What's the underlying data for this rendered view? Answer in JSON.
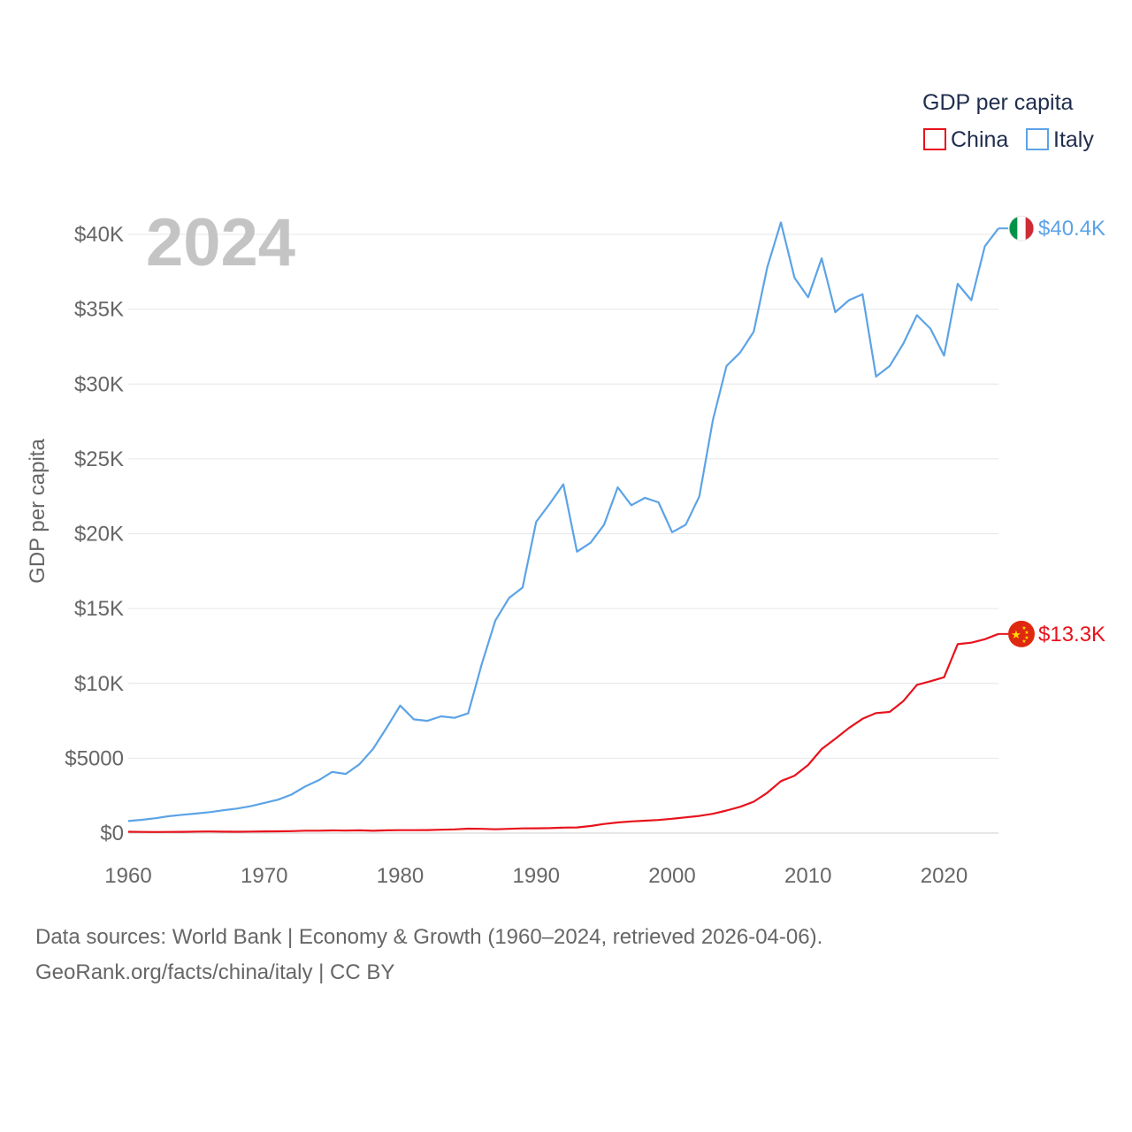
{
  "chart_data": {
    "type": "line",
    "title": "GDP per capita",
    "watermark_year": "2024",
    "ylabel": "GDP per capita",
    "xlabel": "",
    "xlim": [
      1960,
      2024
    ],
    "ylim": [
      0,
      42500
    ],
    "grid": true,
    "legend_position": "top-right",
    "x_ticks": [
      1960,
      1970,
      1980,
      1990,
      2000,
      2010,
      2020
    ],
    "x_tick_labels": [
      "1960",
      "1970",
      "1980",
      "1990",
      "2000",
      "2010",
      "2020"
    ],
    "y_ticks": [
      0,
      5000,
      10000,
      15000,
      20000,
      25000,
      30000,
      35000,
      40000
    ],
    "y_tick_labels": [
      "$0",
      "$5000",
      "$10K",
      "$15K",
      "$20K",
      "$25K",
      "$30K",
      "$35K",
      "$40K"
    ],
    "x": [
      1960,
      1961,
      1962,
      1963,
      1964,
      1965,
      1966,
      1967,
      1968,
      1969,
      1970,
      1971,
      1972,
      1973,
      1974,
      1975,
      1976,
      1977,
      1978,
      1979,
      1980,
      1981,
      1982,
      1983,
      1984,
      1985,
      1986,
      1987,
      1988,
      1989,
      1990,
      1991,
      1992,
      1993,
      1994,
      1995,
      1996,
      1997,
      1998,
      1999,
      2000,
      2001,
      2002,
      2003,
      2004,
      2005,
      2006,
      2007,
      2008,
      2009,
      2010,
      2011,
      2012,
      2013,
      2014,
      2015,
      2016,
      2017,
      2018,
      2019,
      2020,
      2021,
      2022,
      2023,
      2024
    ],
    "series": [
      {
        "name": "China",
        "color": "#e8121c",
        "end_label": "$13.3K",
        "values": [
          89,
          76,
          70,
          74,
          85,
          98,
          104,
          96,
          91,
          100,
          113,
          119,
          132,
          157,
          160,
          178,
          165,
          185,
          156,
          183,
          195,
          197,
          203,
          225,
          251,
          294,
          282,
          252,
          284,
          311,
          318,
          333,
          366,
          377,
          473,
          610,
          709,
          782,
          829,
          873,
          959,
          1053,
          1149,
          1289,
          1509,
          1753,
          2099,
          2694,
          3468,
          3832,
          4550,
          5614,
          6301,
          7020,
          7636,
          8016,
          8094,
          8817,
          9905,
          10144,
          10409,
          12618,
          12720,
          12951,
          13303
        ]
      },
      {
        "name": "Italy",
        "color": "#5ca3e6",
        "end_label": "$40.4K",
        "values": [
          804,
          887,
          990,
          1127,
          1222,
          1304,
          1399,
          1525,
          1637,
          1794,
          2013,
          2226,
          2571,
          3110,
          3530,
          4086,
          3950,
          4598,
          5620,
          7030,
          8520,
          7600,
          7500,
          7800,
          7700,
          8000,
          11300,
          14200,
          15700,
          16400,
          20800,
          22000,
          23300,
          18800,
          19400,
          20600,
          23100,
          21900,
          22400,
          22100,
          20100,
          20600,
          22500,
          27600,
          31200,
          32100,
          33500,
          37800,
          40800,
          37100,
          35800,
          38400,
          34800,
          35600,
          36000,
          30500,
          31200,
          32700,
          34600,
          33700,
          31900,
          36700,
          35600,
          39200,
          40400
        ]
      }
    ]
  },
  "source_lines": [
    "Data sources: World Bank | Economy & Growth (1960–2024, retrieved 2026-04-06).",
    "GeoRank.org/facts/china/italy | CC BY"
  ]
}
